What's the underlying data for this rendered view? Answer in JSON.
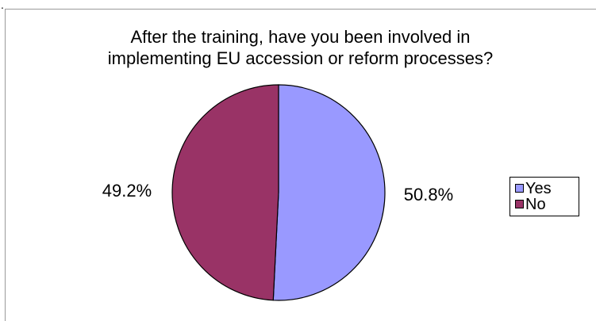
{
  "corner_mark": ".",
  "chart_data": {
    "type": "pie",
    "title_lines": [
      "After the training, have you been involved in",
      "implementing EU accession or reform processes?"
    ],
    "categories": [
      "Yes",
      "No"
    ],
    "values": [
      50.8,
      49.2
    ],
    "unit": "%",
    "labels": [
      "50.8%",
      "49.2%"
    ],
    "colors": [
      "#9999ff",
      "#993366"
    ],
    "legend_position": "right"
  }
}
